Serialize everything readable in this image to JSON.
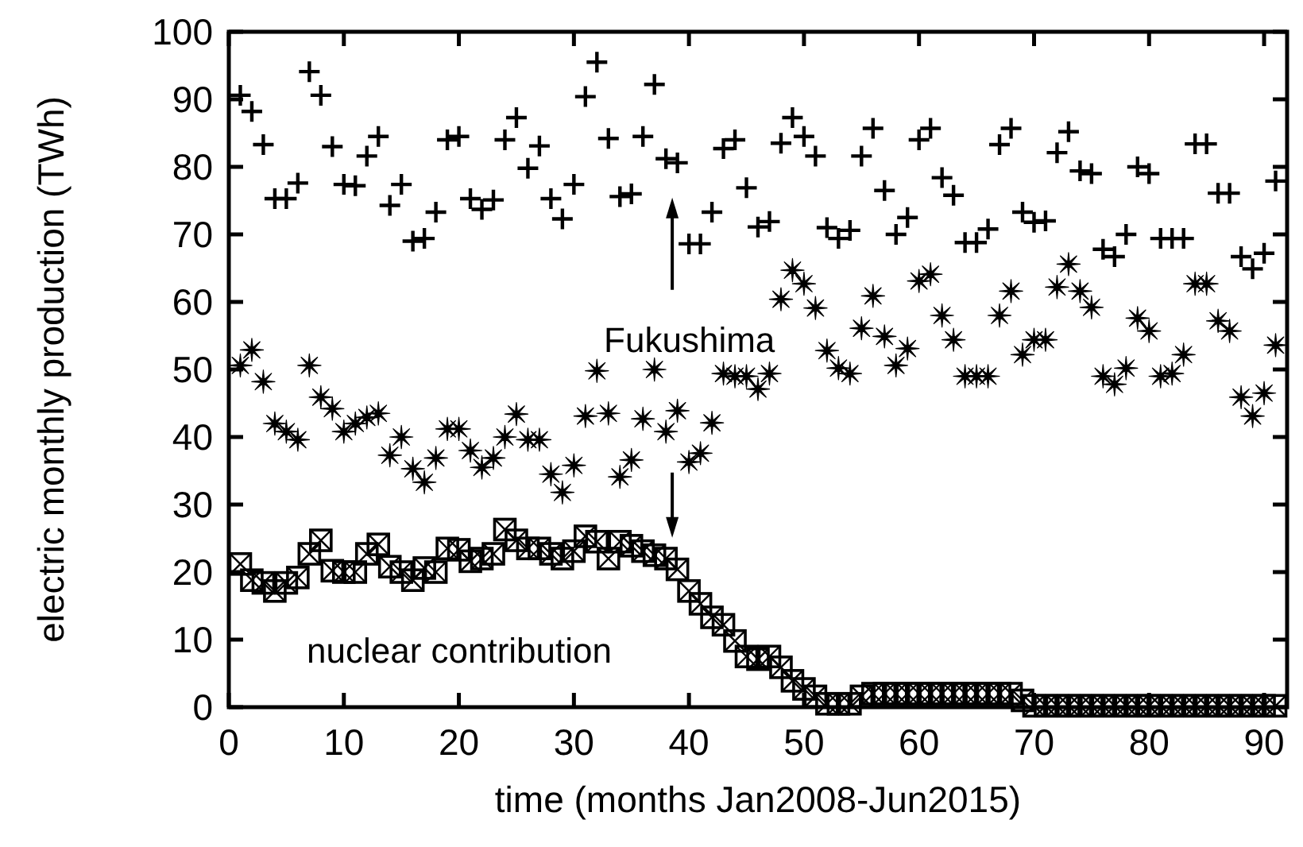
{
  "chart_data": {
    "type": "scatter",
    "xlabel": "time (months Jan2008-Jun2015)",
    "ylabel": "electric monthly production (TWh)",
    "x": [
      1,
      2,
      3,
      4,
      5,
      6,
      7,
      8,
      9,
      10,
      11,
      12,
      13,
      14,
      15,
      16,
      17,
      18,
      19,
      20,
      21,
      22,
      23,
      24,
      25,
      26,
      27,
      28,
      29,
      30,
      31,
      32,
      33,
      34,
      35,
      36,
      37,
      38,
      39,
      40,
      41,
      42,
      43,
      44,
      45,
      46,
      47,
      48,
      49,
      50,
      51,
      52,
      53,
      54,
      55,
      56,
      57,
      58,
      59,
      60,
      61,
      62,
      63,
      64,
      65,
      66,
      67,
      68,
      69,
      70,
      71,
      72,
      73,
      74,
      75,
      76,
      77,
      78,
      79,
      80,
      81,
      82,
      83,
      84,
      85,
      86,
      87,
      88,
      89,
      90,
      91
    ],
    "series": [
      {
        "color": "#000000",
        "marker": "cross",
        "values": [
          90.6,
          88.2,
          83.3,
          75.3,
          75.3,
          77.6,
          94.1,
          90.6,
          83.0,
          77.4,
          77.2,
          81.6,
          84.5,
          74.3,
          77.4,
          69.0,
          69.4,
          73.3,
          84.0,
          84.5,
          75.3,
          73.7,
          75.1,
          84.0,
          87.3,
          79.8,
          83.1,
          75.3,
          72.3,
          77.4,
          90.4,
          95.5,
          84.2,
          75.6,
          76.0,
          84.5,
          92.2,
          81.2,
          80.6,
          68.6,
          68.6,
          73.3,
          82.7,
          84.0,
          76.9,
          71.1,
          71.9,
          83.5,
          87.3,
          84.5,
          81.6,
          71.0,
          69.4,
          70.6,
          81.6,
          85.7,
          76.5,
          70.0,
          72.5,
          84.0,
          85.7,
          78.4,
          75.8,
          68.8,
          68.8,
          70.8,
          83.3,
          85.7,
          73.3,
          71.8,
          72.0,
          82.1,
          85.2,
          79.4,
          79.0,
          67.8,
          66.7,
          70.0,
          80.0,
          79.0,
          69.4,
          69.4,
          69.4,
          83.4,
          83.4,
          76.1,
          76.1,
          66.7,
          64.9,
          67.2,
          77.9
        ]
      },
      {
        "color": "#000000",
        "marker": "star",
        "values": [
          50.6,
          52.9,
          48.2,
          42.0,
          40.8,
          39.6,
          50.6,
          45.9,
          44.2,
          40.8,
          42.0,
          42.9,
          43.5,
          37.3,
          40.0,
          35.3,
          33.3,
          36.9,
          41.2,
          41.2,
          38.0,
          35.5,
          36.9,
          40.0,
          43.4,
          39.6,
          39.6,
          34.5,
          31.8,
          35.8,
          43.1,
          49.8,
          43.5,
          34.1,
          36.6,
          42.7,
          50.0,
          40.8,
          43.9,
          36.3,
          37.6,
          42.1,
          49.4,
          49.0,
          49.0,
          47.1,
          49.4,
          60.4,
          64.7,
          62.7,
          59.1,
          52.8,
          50.2,
          49.4,
          56.1,
          60.9,
          54.9,
          50.6,
          53.1,
          63.1,
          64.1,
          58.0,
          54.4,
          49.0,
          49.0,
          49.0,
          58.0,
          61.6,
          52.2,
          54.4,
          54.4,
          62.2,
          65.6,
          61.6,
          59.2,
          49.0,
          47.8,
          50.2,
          57.6,
          55.7,
          49.0,
          49.4,
          52.2,
          62.7,
          62.7,
          57.2,
          55.7,
          45.9,
          43.1,
          46.5,
          53.6
        ]
      },
      {
        "name": "nuclear contribution",
        "color": "#000000",
        "marker": "square",
        "values": [
          21.2,
          18.8,
          18.4,
          17.2,
          18.4,
          19.2,
          22.7,
          24.7,
          20.2,
          20.0,
          20.0,
          22.7,
          24.1,
          20.8,
          20.0,
          18.8,
          20.6,
          20.0,
          23.5,
          23.3,
          21.6,
          22.0,
          22.7,
          26.3,
          24.7,
          23.5,
          23.5,
          22.7,
          22.0,
          23.1,
          25.3,
          24.5,
          22.0,
          24.5,
          23.9,
          23.1,
          22.5,
          22.0,
          20.4,
          17.2,
          15.3,
          13.3,
          12.2,
          9.8,
          7.5,
          7.1,
          7.5,
          5.9,
          3.9,
          2.7,
          1.6,
          0.5,
          0.5,
          0.5,
          1.6,
          2,
          2,
          2,
          2,
          2,
          2,
          2,
          2,
          2,
          2,
          2,
          2,
          2,
          1.0,
          0.2,
          0.2,
          0.2,
          0.2,
          0.2,
          0.2,
          0.2,
          0.2,
          0.2,
          0.2,
          0.2,
          0.2,
          0.2,
          0.2,
          0.2,
          0.2,
          0.2,
          0.2,
          0.2,
          0.2,
          0.2,
          0.2
        ]
      }
    ],
    "annotations": [
      "Fukushima"
    ],
    "xlim": [
      0,
      92
    ],
    "xticks": [
      0,
      10,
      20,
      30,
      40,
      50,
      60,
      70,
      80,
      90
    ],
    "ylim": [
      0,
      100
    ],
    "yticks": [
      0,
      10,
      20,
      30,
      40,
      50,
      60,
      70,
      80,
      90,
      100
    ]
  }
}
